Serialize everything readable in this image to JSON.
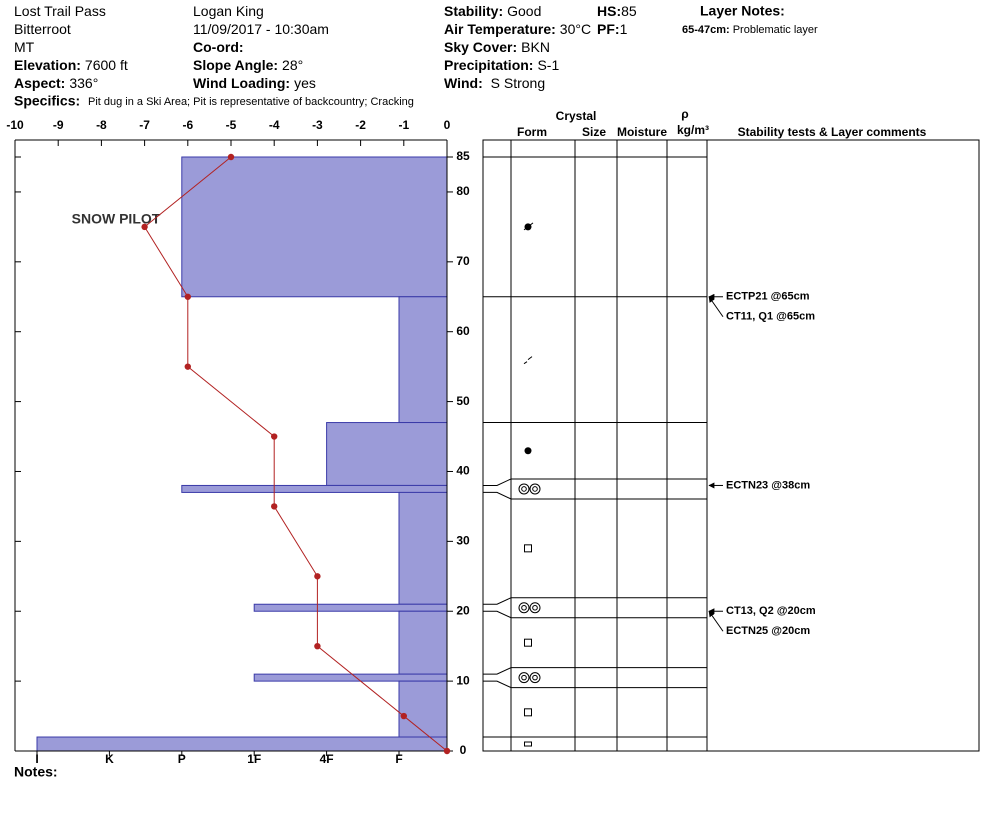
{
  "header": {
    "columns": [
      [
        {
          "value": "Lost Trail Pass"
        },
        {
          "value": "Bitterroot"
        },
        {
          "value": "MT"
        },
        {
          "label": "Elevation:",
          "value": "7600 ft"
        },
        {
          "label": "Aspect:",
          "value": "336°"
        }
      ],
      [
        {
          "value": "Logan King"
        },
        {
          "value": "11/09/2017 - 10:30am"
        },
        {
          "label": "Co-ord:"
        },
        {
          "label": "Slope Angle:",
          "value": "28°"
        },
        {
          "label": "Wind Loading:",
          "value": "yes"
        }
      ],
      [
        {
          "label": "Stability:",
          "value": "Good"
        },
        {
          "label": "Air Temperature:",
          "value": "30°C"
        },
        {
          "label": "Sky Cover:",
          "value": "BKN"
        },
        {
          "label": "Precipitation:",
          "value": "S-1"
        },
        {
          "label": "Wind:",
          "value": " S Strong"
        }
      ],
      [
        {
          "label": "HS:",
          "value": "85"
        },
        {
          "label": "PF:",
          "value": "1"
        }
      ]
    ],
    "layer_notes_title": "Layer Notes:",
    "layer_notes": [
      {
        "range": "65-47cm:",
        "text": "Problematic layer"
      }
    ],
    "specifics": {
      "label": "Specifics:",
      "value": "Pit dug in a Ski Area; Pit is representative of backcountry; Cracking"
    }
  },
  "chart_data": {
    "type": "snow-profile",
    "xlim": [
      -10,
      0
    ],
    "xticks": [
      -10,
      -9,
      -8,
      -7,
      -6,
      -5,
      -4,
      -3,
      -2,
      -1,
      0
    ],
    "ylim": [
      0,
      85
    ],
    "yticks": [
      0,
      10,
      20,
      30,
      40,
      50,
      60,
      70,
      80,
      85
    ],
    "hardness_labels": [
      "I",
      "K",
      "P",
      "1F",
      "4F",
      "F"
    ],
    "layer_color": "#9b9bd8",
    "layers": [
      {
        "top": 85,
        "bottom": 65,
        "hardness": "P"
      },
      {
        "top": 65,
        "bottom": 47,
        "hardness": "F"
      },
      {
        "top": 47,
        "bottom": 38,
        "hardness": "4F"
      },
      {
        "top": 38,
        "bottom": 37,
        "hardness": "P"
      },
      {
        "top": 37,
        "bottom": 21,
        "hardness": "F"
      },
      {
        "top": 21,
        "bottom": 20,
        "hardness": "1F"
      },
      {
        "top": 20,
        "bottom": 11,
        "hardness": "F"
      },
      {
        "top": 11,
        "bottom": 10,
        "hardness": "1F"
      },
      {
        "top": 10,
        "bottom": 2,
        "hardness": "F"
      },
      {
        "top": 2,
        "bottom": 0,
        "hardness": "I"
      }
    ],
    "temperature": {
      "color": "#b22222",
      "x": [
        -5,
        -7,
        -6,
        -6,
        -4,
        -4,
        -3,
        -3,
        -1,
        0
      ],
      "y": [
        85,
        75,
        65,
        55,
        45,
        35,
        25,
        15,
        5,
        0
      ]
    },
    "table_headers": {
      "crystal": "Crystal",
      "form": "Form",
      "size": "Size",
      "moisture": "Moisture",
      "rho": "ρ",
      "density_unit": "kg/m³",
      "comments": "Stability tests & Layer comments"
    },
    "stability_tests": [
      {
        "label": "ECTP21 @65cm",
        "depth": 65
      },
      {
        "label": "CT11, Q1 @65cm",
        "depth": 65
      },
      {
        "label": "ECTN23 @38cm",
        "depth": 38
      },
      {
        "label": "CT13, Q2 @20cm",
        "depth": 20
      },
      {
        "label": "ECTN25 @20cm",
        "depth": 20
      }
    ],
    "watermark": "SNOW PILOT"
  },
  "notes_label": "Notes:"
}
